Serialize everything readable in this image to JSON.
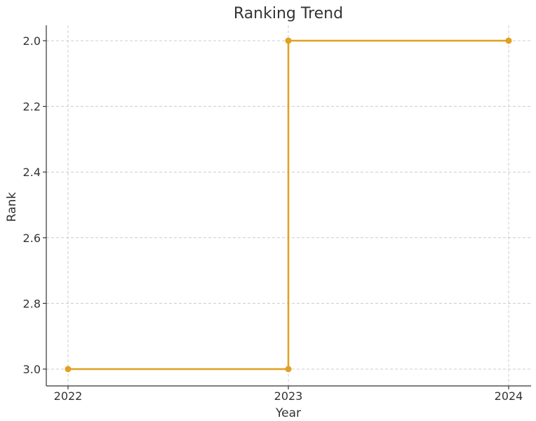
{
  "chart_data": {
    "type": "line",
    "title": "Ranking Trend",
    "xlabel": "Year",
    "ylabel": "Rank",
    "x": [
      2022,
      2023,
      2024
    ],
    "x_tick_labels": [
      "2022",
      "2023",
      "2024"
    ],
    "y_ticks": [
      2.0,
      2.2,
      2.4,
      2.6,
      2.8,
      3.0
    ],
    "y_tick_labels": [
      "2.0",
      "2.2",
      "2.4",
      "2.6",
      "2.8",
      "3.0"
    ],
    "ylim": [
      3.0,
      2.0
    ],
    "y_inverted": true,
    "step": "post",
    "grid": true,
    "color": "#e0a020",
    "series": [
      {
        "values": [
          3,
          2,
          2
        ]
      }
    ]
  }
}
